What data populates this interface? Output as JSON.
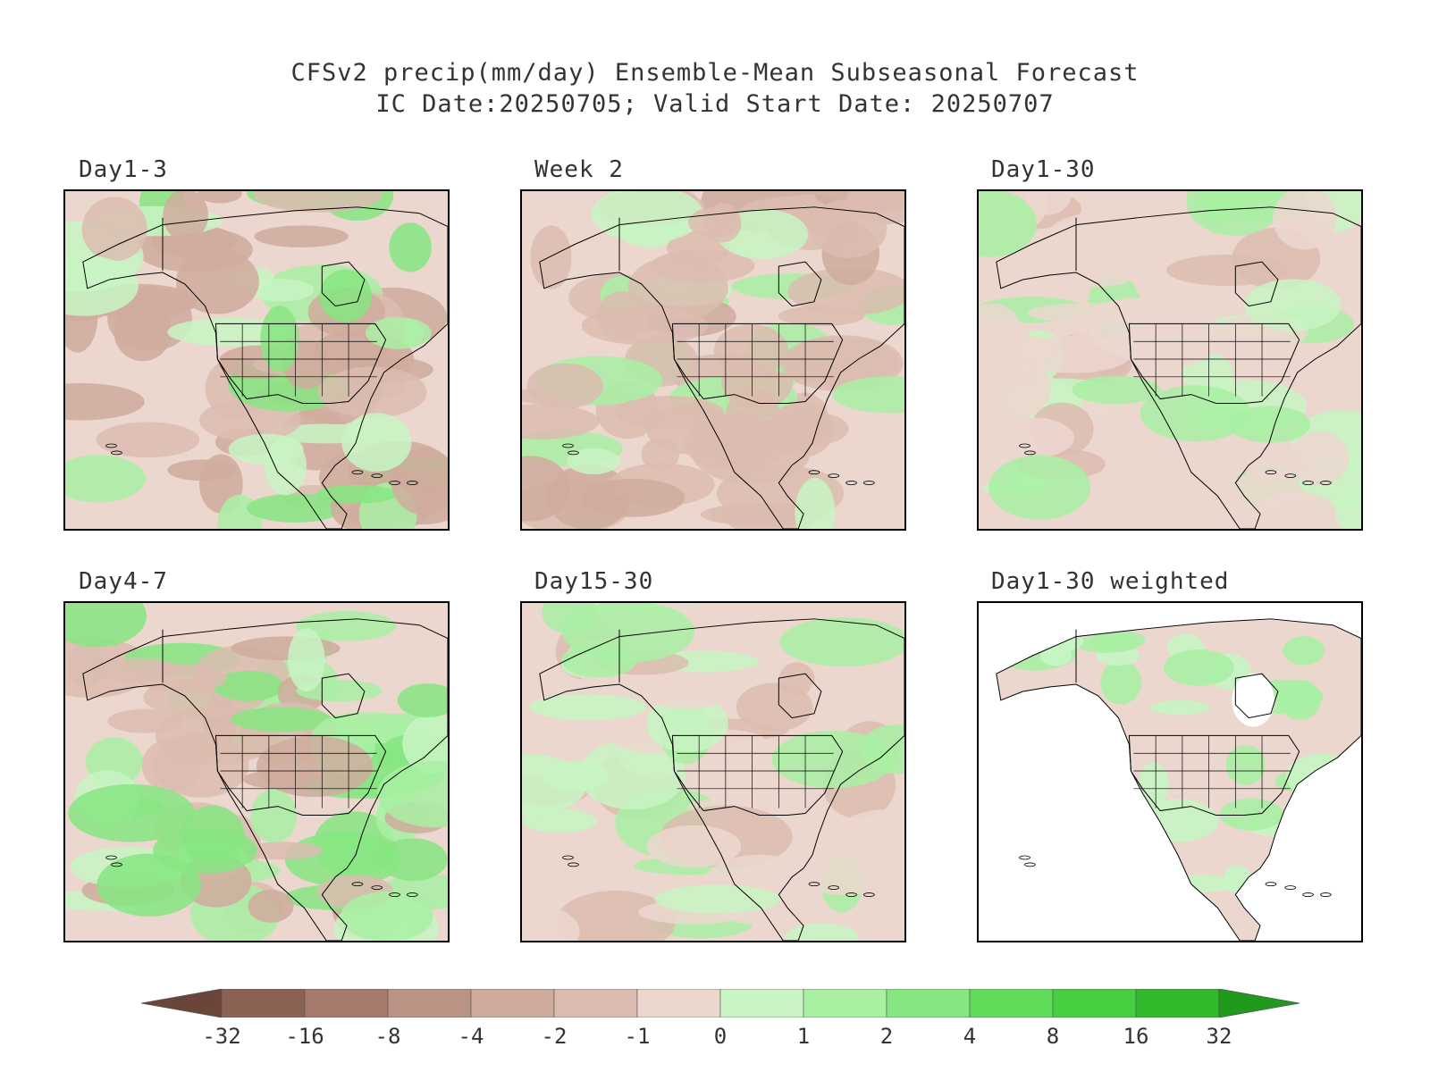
{
  "title_line1": "CFSv2 precip(mm/day) Ensemble-Mean Subseasonal Forecast",
  "title_line2": "IC Date:20250705; Valid Start Date: 20250707",
  "panels": [
    {
      "label": "Day1-3",
      "scheme": "mixed_dry"
    },
    {
      "label": "Week 2",
      "scheme": "mostly_dry"
    },
    {
      "label": "Day1-30",
      "scheme": "mixed_light"
    },
    {
      "label": "Day4-7",
      "scheme": "mixed_wet"
    },
    {
      "label": "Day15-30",
      "scheme": "mixed_light"
    },
    {
      "label": "Day1-30 weighted",
      "scheme": "land_only"
    }
  ],
  "colorbar": {
    "labels": [
      "-32",
      "-16",
      "-8",
      "-4",
      "-2",
      "-1",
      "0",
      "1",
      "2",
      "4",
      "8",
      "16",
      "32"
    ],
    "colors": [
      "#6b4539",
      "#8c6254",
      "#a57a6c",
      "#bb9384",
      "#cfab9e",
      "#dcbcb0",
      "#ecd7cf",
      "#c8f5c3",
      "#a9f0a3",
      "#86e681",
      "#5edc5a",
      "#44d040",
      "#2fba2b",
      "#1f9a1c"
    ]
  }
}
